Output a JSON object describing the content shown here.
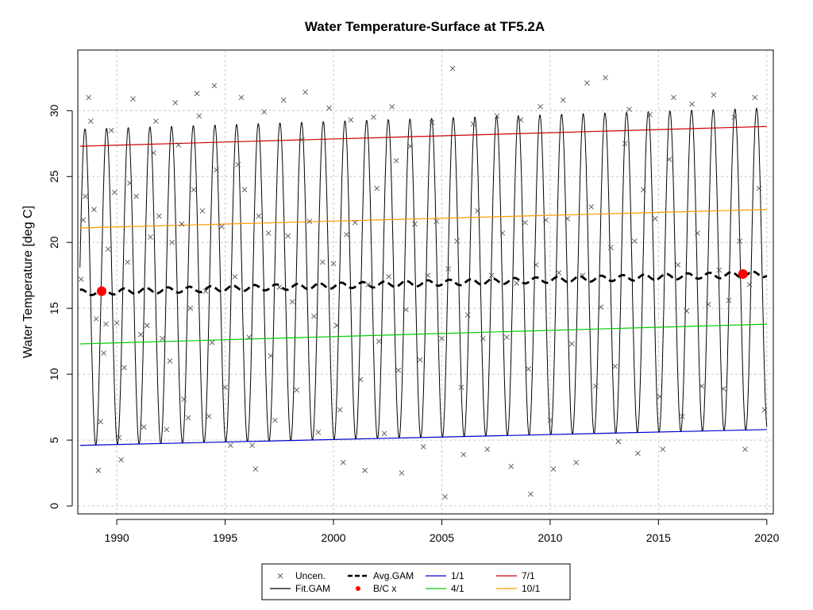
{
  "chart_data": {
    "type": "line",
    "title": "Water Temperature-Surface at TF5.2A",
    "xlabel": "",
    "ylabel": "Water Temperature [deg C]",
    "xlim": [
      1988.2,
      2020.3
    ],
    "ylim": [
      -0.6,
      34.6
    ],
    "x_ticks": [
      1990,
      1995,
      2000,
      2005,
      2010,
      2015,
      2020
    ],
    "y_ticks": [
      0,
      5,
      10,
      15,
      20,
      25,
      30
    ],
    "grid": true,
    "legend_position": "bottom-center",
    "colors": {
      "uncen": "#555555",
      "fit_gam": "#000000",
      "avg_gam": "#000000",
      "bc": "#ff0000",
      "jan1": "#0000cc",
      "apr1": "#00cc00",
      "jul1": "#cc0000",
      "oct1": "#ff9900",
      "grid": "#c8c8c8"
    },
    "legend": [
      {
        "label": "Uncen.",
        "symbol": "x",
        "color": "#555555"
      },
      {
        "label": "Fit.GAM",
        "symbol": "line",
        "color": "#000000"
      },
      {
        "label": "Avg.GAM",
        "symbol": "dash",
        "color": "#000000"
      },
      {
        "label": "B/C x",
        "symbol": "dot",
        "color": "#ff0000"
      },
      {
        "label": "1/1",
        "symbol": "line",
        "color": "#0000cc"
      },
      {
        "label": "4/1",
        "symbol": "line",
        "color": "#00cc00"
      },
      {
        "label": "7/1",
        "symbol": "line",
        "color": "#cc0000"
      },
      {
        "label": "10/1",
        "symbol": "line",
        "color": "#ff9900"
      }
    ],
    "series": [
      {
        "name": "1/1",
        "x": [
          1988.3,
          2020.0
        ],
        "y": [
          4.6,
          5.8
        ]
      },
      {
        "name": "4/1",
        "x": [
          1988.3,
          2020.0
        ],
        "y": [
          12.3,
          13.8
        ]
      },
      {
        "name": "7/1",
        "x": [
          1988.3,
          2020.0
        ],
        "y": [
          27.3,
          28.8
        ]
      },
      {
        "name": "10/1",
        "x": [
          1988.3,
          2020.0
        ],
        "y": [
          21.1,
          22.5
        ]
      },
      {
        "name": "Avg.GAM",
        "x": [
          1988.3,
          2020.0
        ],
        "y": [
          16.2,
          17.6
        ]
      },
      {
        "name": "B/C x",
        "x": [
          1989.3,
          2018.9
        ],
        "y": [
          16.3,
          17.6
        ]
      }
    ],
    "fit_gam": {
      "x_start": 1988.3,
      "x_end": 2020.0,
      "winter_min": [
        4.6,
        5.8
      ],
      "summer_max": [
        28.6,
        30.2
      ]
    },
    "uncen_points": [
      [
        1988.35,
        17.2
      ],
      [
        1988.45,
        21.7
      ],
      [
        1988.55,
        23.5
      ],
      [
        1988.7,
        31.0
      ],
      [
        1988.8,
        29.2
      ],
      [
        1988.95,
        22.5
      ],
      [
        1989.05,
        14.2
      ],
      [
        1989.15,
        2.7
      ],
      [
        1989.25,
        6.4
      ],
      [
        1989.4,
        11.6
      ],
      [
        1989.5,
        13.8
      ],
      [
        1989.6,
        19.5
      ],
      [
        1989.75,
        28.5
      ],
      [
        1989.9,
        23.8
      ],
      [
        1990.0,
        13.9
      ],
      [
        1990.1,
        5.2
      ],
      [
        1990.2,
        3.5
      ],
      [
        1990.35,
        10.5
      ],
      [
        1990.5,
        18.5
      ],
      [
        1990.6,
        24.5
      ],
      [
        1990.75,
        30.9
      ],
      [
        1990.9,
        23.5
      ],
      [
        1991.1,
        13.0
      ],
      [
        1991.25,
        6.0
      ],
      [
        1991.4,
        13.7
      ],
      [
        1991.55,
        20.4
      ],
      [
        1991.7,
        26.8
      ],
      [
        1991.8,
        29.2
      ],
      [
        1991.95,
        22.0
      ],
      [
        1992.1,
        12.7
      ],
      [
        1992.3,
        5.8
      ],
      [
        1992.45,
        11.0
      ],
      [
        1992.55,
        20.0
      ],
      [
        1992.7,
        30.6
      ],
      [
        1992.85,
        27.4
      ],
      [
        1993.0,
        21.4
      ],
      [
        1993.1,
        8.1
      ],
      [
        1993.3,
        6.7
      ],
      [
        1993.4,
        15.0
      ],
      [
        1993.55,
        24.0
      ],
      [
        1993.7,
        31.3
      ],
      [
        1993.8,
        29.6
      ],
      [
        1993.95,
        22.4
      ],
      [
        1994.1,
        16.3
      ],
      [
        1994.25,
        6.8
      ],
      [
        1994.4,
        12.4
      ],
      [
        1994.5,
        31.9
      ],
      [
        1994.6,
        25.5
      ],
      [
        1994.85,
        21.2
      ],
      [
        1995.0,
        9.0
      ],
      [
        1995.25,
        4.6
      ],
      [
        1995.45,
        17.4
      ],
      [
        1995.6,
        25.9
      ],
      [
        1995.75,
        31.0
      ],
      [
        1995.9,
        24.0
      ],
      [
        1996.1,
        12.8
      ],
      [
        1996.25,
        4.6
      ],
      [
        1996.4,
        2.8
      ],
      [
        1996.55,
        22.0
      ],
      [
        1996.8,
        29.9
      ],
      [
        1997.0,
        20.7
      ],
      [
        1997.1,
        11.4
      ],
      [
        1997.3,
        6.5
      ],
      [
        1997.5,
        16.6
      ],
      [
        1997.7,
        30.8
      ],
      [
        1997.9,
        20.5
      ],
      [
        1998.1,
        15.5
      ],
      [
        1998.3,
        8.8
      ],
      [
        1998.55,
        27.8
      ],
      [
        1998.7,
        31.4
      ],
      [
        1998.9,
        21.6
      ],
      [
        1999.1,
        14.4
      ],
      [
        1999.3,
        5.6
      ],
      [
        1999.5,
        18.5
      ],
      [
        1999.8,
        30.2
      ],
      [
        2000.0,
        18.4
      ],
      [
        2000.15,
        13.7
      ],
      [
        2000.3,
        7.3
      ],
      [
        2000.45,
        3.3
      ],
      [
        2000.6,
        20.6
      ],
      [
        2000.8,
        29.3
      ],
      [
        2001.0,
        21.5
      ],
      [
        2001.25,
        9.6
      ],
      [
        2001.45,
        2.7
      ],
      [
        2001.6,
        16.8
      ],
      [
        2001.85,
        29.5
      ],
      [
        2002.0,
        24.1
      ],
      [
        2002.1,
        12.5
      ],
      [
        2002.35,
        5.5
      ],
      [
        2002.55,
        17.4
      ],
      [
        2002.7,
        30.3
      ],
      [
        2002.9,
        26.2
      ],
      [
        2003.0,
        10.3
      ],
      [
        2003.15,
        2.5
      ],
      [
        2003.35,
        14.9
      ],
      [
        2003.55,
        27.3
      ],
      [
        2003.75,
        21.4
      ],
      [
        2004.0,
        11.1
      ],
      [
        2004.15,
        4.5
      ],
      [
        2004.35,
        17.5
      ],
      [
        2004.55,
        29.1
      ],
      [
        2004.75,
        21.6
      ],
      [
        2005.0,
        12.7
      ],
      [
        2005.15,
        0.7
      ],
      [
        2005.3,
        18.0
      ],
      [
        2005.5,
        33.2
      ],
      [
        2005.7,
        20.1
      ],
      [
        2005.9,
        9.0
      ],
      [
        2006.0,
        3.9
      ],
      [
        2006.2,
        14.5
      ],
      [
        2006.45,
        29.0
      ],
      [
        2006.65,
        22.4
      ],
      [
        2006.9,
        12.7
      ],
      [
        2007.1,
        4.3
      ],
      [
        2007.3,
        17.5
      ],
      [
        2007.55,
        29.6
      ],
      [
        2007.8,
        20.7
      ],
      [
        2008.0,
        12.8
      ],
      [
        2008.2,
        3.0
      ],
      [
        2008.45,
        16.9
      ],
      [
        2008.65,
        29.3
      ],
      [
        2008.85,
        21.5
      ],
      [
        2009.0,
        10.4
      ],
      [
        2009.1,
        0.9
      ],
      [
        2009.35,
        18.3
      ],
      [
        2009.55,
        30.3
      ],
      [
        2009.8,
        21.7
      ],
      [
        2010.0,
        6.5
      ],
      [
        2010.15,
        2.8
      ],
      [
        2010.4,
        17.7
      ],
      [
        2010.6,
        30.8
      ],
      [
        2010.8,
        21.8
      ],
      [
        2011.0,
        12.3
      ],
      [
        2011.2,
        3.3
      ],
      [
        2011.5,
        17.5
      ],
      [
        2011.7,
        32.1
      ],
      [
        2011.9,
        22.7
      ],
      [
        2012.1,
        9.1
      ],
      [
        2012.35,
        15.1
      ],
      [
        2012.55,
        32.5
      ],
      [
        2012.8,
        19.6
      ],
      [
        2013.0,
        10.6
      ],
      [
        2013.15,
        4.9
      ],
      [
        2013.45,
        27.5
      ],
      [
        2013.65,
        30.1
      ],
      [
        2013.9,
        20.1
      ],
      [
        2014.05,
        4.0
      ],
      [
        2014.3,
        24.0
      ],
      [
        2014.6,
        29.7
      ],
      [
        2014.85,
        21.8
      ],
      [
        2015.05,
        8.3
      ],
      [
        2015.2,
        4.3
      ],
      [
        2015.5,
        26.3
      ],
      [
        2015.7,
        31.0
      ],
      [
        2015.9,
        18.3
      ],
      [
        2016.1,
        6.8
      ],
      [
        2016.3,
        14.8
      ],
      [
        2016.55,
        30.5
      ],
      [
        2016.8,
        20.7
      ],
      [
        2017.0,
        9.1
      ],
      [
        2017.3,
        15.3
      ],
      [
        2017.55,
        31.2
      ],
      [
        2017.8,
        17.9
      ],
      [
        2018.0,
        8.9
      ],
      [
        2018.25,
        15.6
      ],
      [
        2018.5,
        29.5
      ],
      [
        2018.75,
        20.1
      ],
      [
        2019.0,
        4.3
      ],
      [
        2019.2,
        16.8
      ],
      [
        2019.45,
        31.0
      ],
      [
        2019.65,
        24.1
      ],
      [
        2019.9,
        7.3
      ]
    ]
  }
}
